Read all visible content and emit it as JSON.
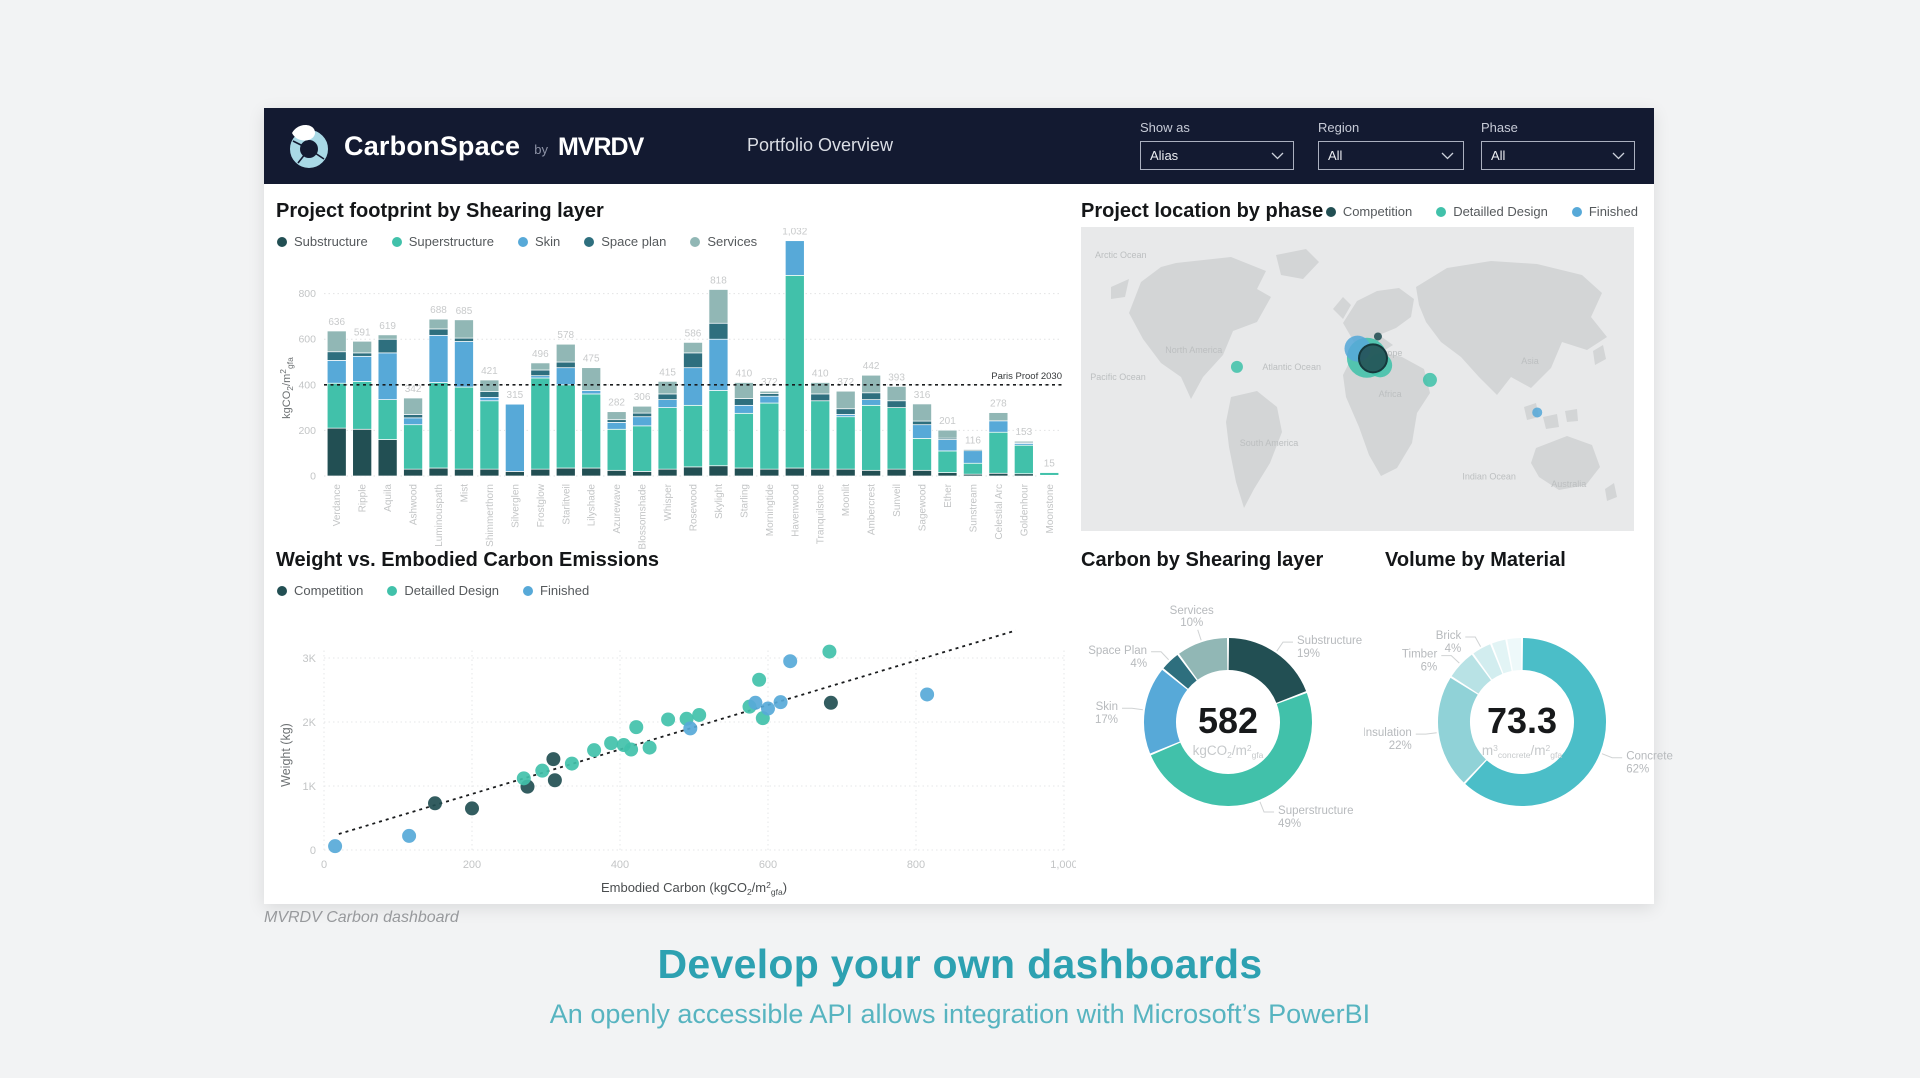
{
  "header": {
    "brand": "CarbonSpace",
    "by": "by",
    "logo_text": "MVRDV",
    "page_title": "Portfolio Overview",
    "filters": [
      {
        "label": "Show as",
        "value": "Alias"
      },
      {
        "label": "Region",
        "value": "All"
      },
      {
        "label": "Phase",
        "value": "All"
      }
    ]
  },
  "panels": {
    "footprint": {
      "title": "Project footprint by Shearing layer",
      "legend": [
        {
          "label": "Substructure",
          "color": "#224f53"
        },
        {
          "label": "Superstructure",
          "color": "#41c1aa"
        },
        {
          "label": "Skin",
          "color": "#57a9d8"
        },
        {
          "label": "Space plan",
          "color": "#2e6f7e"
        },
        {
          "label": "Services",
          "color": "#91b7b5"
        }
      ]
    },
    "map": {
      "title": "Project location by phase",
      "legend": [
        {
          "label": "Competition",
          "color": "#224f53"
        },
        {
          "label": "Detailled Design",
          "color": "#41c1aa"
        },
        {
          "label": "Finished",
          "color": "#57a9d8"
        }
      ]
    },
    "scatter": {
      "title": "Weight vs. Embodied Carbon Emissions",
      "legend": [
        {
          "label": "Competition",
          "color": "#224f53"
        },
        {
          "label": "Detailled Design",
          "color": "#41c1aa"
        },
        {
          "label": "Finished",
          "color": "#57a9d8"
        }
      ]
    },
    "donut_carbon": {
      "title": "Carbon by Shearing layer"
    },
    "donut_volume": {
      "title": "Volume by Material"
    }
  },
  "chart_data": [
    {
      "type": "bar",
      "subtype": "stacked",
      "title": "Project footprint by Shearing layer",
      "ylabel_parts": [
        [
          "kgCO",
          ""
        ],
        [
          "2",
          "sub"
        ],
        [
          "/m",
          ""
        ],
        [
          "2",
          "sup"
        ],
        [
          "gfa",
          "sub"
        ]
      ],
      "yticks": [
        0,
        200,
        400,
        600,
        800
      ],
      "ylim": [
        0,
        1100
      ],
      "reference_line": {
        "value": 400,
        "label": "Paris Proof 2030"
      },
      "series": [
        "Substructure",
        "Superstructure",
        "Skin",
        "Space plan",
        "Services"
      ],
      "series_colors": [
        "#224f53",
        "#41c1aa",
        "#57a9d8",
        "#2e6f7e",
        "#91b7b5"
      ],
      "bars": [
        {
          "name": "Verdance",
          "total": 636,
          "segments": [
            210,
            197,
            100,
            38,
            91
          ]
        },
        {
          "name": "Ripple",
          "total": 591,
          "segments": [
            205,
            210,
            110,
            15,
            51
          ]
        },
        {
          "name": "Aquila",
          "total": 619,
          "segments": [
            160,
            175,
            205,
            60,
            19
          ]
        },
        {
          "name": "Ashwood",
          "total": 342,
          "segments": [
            30,
            195,
            30,
            15,
            72
          ]
        },
        {
          "name": "Luminouspath",
          "total": 688,
          "segments": [
            35,
            375,
            207,
            28,
            43
          ]
        },
        {
          "name": "Mist",
          "total": 685,
          "segments": [
            30,
            360,
            200,
            15,
            80
          ]
        },
        {
          "name": "Shimmerthorn",
          "total": 421,
          "segments": [
            30,
            300,
            15,
            25,
            51
          ]
        },
        {
          "name": "Silverglen",
          "total": 315,
          "segments": [
            20,
            0,
            295,
            0,
            0
          ]
        },
        {
          "name": "Frostglow",
          "total": 496,
          "segments": [
            30,
            400,
            10,
            25,
            31
          ]
        },
        {
          "name": "Starlitveil",
          "total": 578,
          "segments": [
            35,
            365,
            75,
            25,
            78
          ]
        },
        {
          "name": "Lilyshade",
          "total": 475,
          "segments": [
            35,
            325,
            15,
            0,
            100
          ]
        },
        {
          "name": "Azurewave",
          "total": 282,
          "segments": [
            25,
            180,
            30,
            12,
            35
          ]
        },
        {
          "name": "Blossomshade",
          "total": 306,
          "segments": [
            20,
            200,
            40,
            16,
            30
          ]
        },
        {
          "name": "Whisper",
          "total": 415,
          "segments": [
            30,
            270,
            35,
            25,
            55
          ]
        },
        {
          "name": "Rosewood",
          "total": 586,
          "segments": [
            40,
            270,
            165,
            65,
            46
          ]
        },
        {
          "name": "Skylight",
          "total": 818,
          "segments": [
            45,
            330,
            225,
            70,
            148
          ]
        },
        {
          "name": "Starling",
          "total": 410,
          "segments": [
            35,
            240,
            35,
            30,
            70
          ]
        },
        {
          "name": "Morningtide",
          "total": 372,
          "segments": [
            30,
            290,
            30,
            12,
            10
          ]
        },
        {
          "name": "Havenwood",
          "total": 1032,
          "segments": [
            35,
            845,
            152,
            0,
            0
          ]
        },
        {
          "name": "Tranquilstone",
          "total": 410,
          "segments": [
            30,
            300,
            0,
            30,
            50
          ]
        },
        {
          "name": "Moonlit",
          "total": 372,
          "segments": [
            30,
            230,
            10,
            25,
            77
          ]
        },
        {
          "name": "Ambercrest",
          "total": 442,
          "segments": [
            25,
            285,
            25,
            30,
            77
          ]
        },
        {
          "name": "Sunveil",
          "total": 393,
          "segments": [
            30,
            270,
            0,
            30,
            63
          ]
        },
        {
          "name": "Sagewood",
          "total": 316,
          "segments": [
            25,
            140,
            60,
            16,
            75
          ]
        },
        {
          "name": "Ether",
          "total": 201,
          "segments": [
            15,
            95,
            50,
            6,
            35
          ]
        },
        {
          "name": "Sunstream",
          "total": 116,
          "segments": [
            8,
            48,
            55,
            5,
            0
          ]
        },
        {
          "name": "Celestial Arc",
          "total": 278,
          "segments": [
            12,
            180,
            50,
            0,
            36
          ]
        },
        {
          "name": "Goldenhour",
          "total": 153,
          "segments": [
            10,
            125,
            8,
            5,
            5
          ]
        },
        {
          "name": "Moonstone",
          "total": 15,
          "segments": [
            3,
            12,
            0,
            0,
            0
          ]
        }
      ]
    },
    {
      "type": "map",
      "title": "Project location by phase",
      "region_labels": [
        {
          "text": "Arctic Ocean",
          "x": 0.072,
          "y": 0.102
        },
        {
          "text": "North America",
          "x": 0.204,
          "y": 0.414
        },
        {
          "text": "Pacific Ocean",
          "x": 0.067,
          "y": 0.503
        },
        {
          "text": "Atlantic Ocean",
          "x": 0.381,
          "y": 0.47
        },
        {
          "text": "Europe",
          "x": 0.555,
          "y": 0.425
        },
        {
          "text": "Africa",
          "x": 0.559,
          "y": 0.56
        },
        {
          "text": "South America",
          "x": 0.34,
          "y": 0.72
        },
        {
          "text": "Asia",
          "x": 0.812,
          "y": 0.45
        },
        {
          "text": "Indian Ocean",
          "x": 0.738,
          "y": 0.83
        },
        {
          "text": "Australia",
          "x": 0.882,
          "y": 0.855
        }
      ],
      "markers": [
        {
          "series": "Detailled Design",
          "x": 0.282,
          "y": 0.46,
          "r": 6
        },
        {
          "series": "Detailled Design",
          "x": 0.517,
          "y": 0.43,
          "r": 20
        },
        {
          "series": "Finished",
          "x": 0.5,
          "y": 0.4,
          "r": 13
        },
        {
          "series": "Detailled Design",
          "x": 0.541,
          "y": 0.455,
          "r": 12
        },
        {
          "series": "Competition",
          "x": 0.528,
          "y": 0.432,
          "r": 14,
          "ring": true
        },
        {
          "series": "Competition",
          "x": 0.537,
          "y": 0.36,
          "r": 4
        },
        {
          "series": "Detailled Design",
          "x": 0.631,
          "y": 0.503,
          "r": 7
        },
        {
          "series": "Finished",
          "x": 0.825,
          "y": 0.61,
          "r": 5
        }
      ]
    },
    {
      "type": "scatter",
      "title": "Weight vs. Embodied Carbon Emissions",
      "xlabel_parts": [
        [
          "Embodied Carbon (kgCO",
          ""
        ],
        [
          "2",
          "sub"
        ],
        [
          "/m",
          ""
        ],
        [
          "2",
          "sup"
        ],
        [
          "gfa",
          "sub"
        ],
        [
          ")",
          ""
        ]
      ],
      "ylabel": "Weight (kg)",
      "xticks": [
        {
          "v": 0,
          "t": "0"
        },
        {
          "v": 200,
          "t": "200"
        },
        {
          "v": 400,
          "t": "400"
        },
        {
          "v": 600,
          "t": "600"
        },
        {
          "v": 800,
          "t": "800"
        },
        {
          "v": 1000,
          "t": "1,000"
        }
      ],
      "yticks": [
        {
          "v": 0,
          "t": "0"
        },
        {
          "v": 1000,
          "t": "1K"
        },
        {
          "v": 2000,
          "t": "2K"
        },
        {
          "v": 3000,
          "t": "3K"
        }
      ],
      "xlim": [
        0,
        1000
      ],
      "ylim": [
        0,
        3600
      ],
      "trend": [
        [
          20,
          250
        ],
        [
          935,
          3430
        ]
      ],
      "series": [
        {
          "name": "Competition",
          "color": "#224f53",
          "points": [
            [
              150,
              730
            ],
            [
              200,
              650
            ],
            [
              275,
              990
            ],
            [
              312,
              1090
            ],
            [
              310,
              1420
            ],
            [
              685,
              2300
            ]
          ]
        },
        {
          "name": "Detailled Design",
          "color": "#41c1aa",
          "points": [
            [
              270,
              1120
            ],
            [
              295,
              1240
            ],
            [
              335,
              1350
            ],
            [
              365,
              1560
            ],
            [
              388,
              1670
            ],
            [
              405,
              1640
            ],
            [
              415,
              1570
            ],
            [
              422,
              1920
            ],
            [
              440,
              1600
            ],
            [
              465,
              2040
            ],
            [
              490,
              2050
            ],
            [
              507,
              2110
            ],
            [
              575,
              2240
            ],
            [
              588,
              2660
            ],
            [
              593,
              2060
            ],
            [
              683,
              3100
            ]
          ]
        },
        {
          "name": "Finished",
          "color": "#57a9d8",
          "points": [
            [
              15,
              60
            ],
            [
              115,
              220
            ],
            [
              495,
              1900
            ],
            [
              583,
              2300
            ],
            [
              600,
              2210
            ],
            [
              617,
              2310
            ],
            [
              630,
              2950
            ],
            [
              815,
              2430
            ]
          ]
        }
      ]
    },
    {
      "type": "donut",
      "title": "Carbon by Shearing layer",
      "center_value": "582",
      "unit_parts": [
        [
          "kgCO",
          ""
        ],
        [
          "2",
          "sub"
        ],
        [
          "/m",
          ""
        ],
        [
          "2",
          "sup"
        ],
        [
          "gfa",
          "sub"
        ]
      ],
      "slices": [
        {
          "label": "Substructure",
          "pct": 19,
          "color": "#224f53"
        },
        {
          "label": "Superstructure",
          "pct": 49,
          "color": "#41c1aa"
        },
        {
          "label": "Skin",
          "pct": 17,
          "color": "#57a9d8"
        },
        {
          "label": "Space Plan",
          "pct": 4,
          "color": "#2e6f7e"
        },
        {
          "label": "Services",
          "pct": 10,
          "color": "#91b7b5"
        }
      ]
    },
    {
      "type": "donut",
      "title": "Volume by Material",
      "center_value": "73.3",
      "unit_parts": [
        [
          "m",
          ""
        ],
        [
          "3",
          "sup"
        ],
        [
          "concrete",
          "sub"
        ],
        [
          "/m",
          ""
        ],
        [
          "2",
          "sup"
        ],
        [
          "gfa",
          "sub"
        ]
      ],
      "slices": [
        {
          "label": "Concrete",
          "pct": 62,
          "color": "#4bbec8"
        },
        {
          "label": "Insulation",
          "pct": 22,
          "color": "#90d2d7"
        },
        {
          "label": "Timber",
          "pct": 6,
          "color": "#b8e2e5"
        },
        {
          "label": "Brick",
          "pct": 4,
          "color": "#d2edef"
        },
        {
          "label": "",
          "pct": 3,
          "color": "#e2f4f5"
        },
        {
          "label": "",
          "pct": 3,
          "color": "#eef9fa"
        }
      ]
    }
  ],
  "caption": {
    "text": "MVRDV Carbon dashboard"
  },
  "footer": {
    "heading": "Develop your own dashboards",
    "subheading": "An openly accessible API allows integration with Microsoft’s PowerBI"
  }
}
